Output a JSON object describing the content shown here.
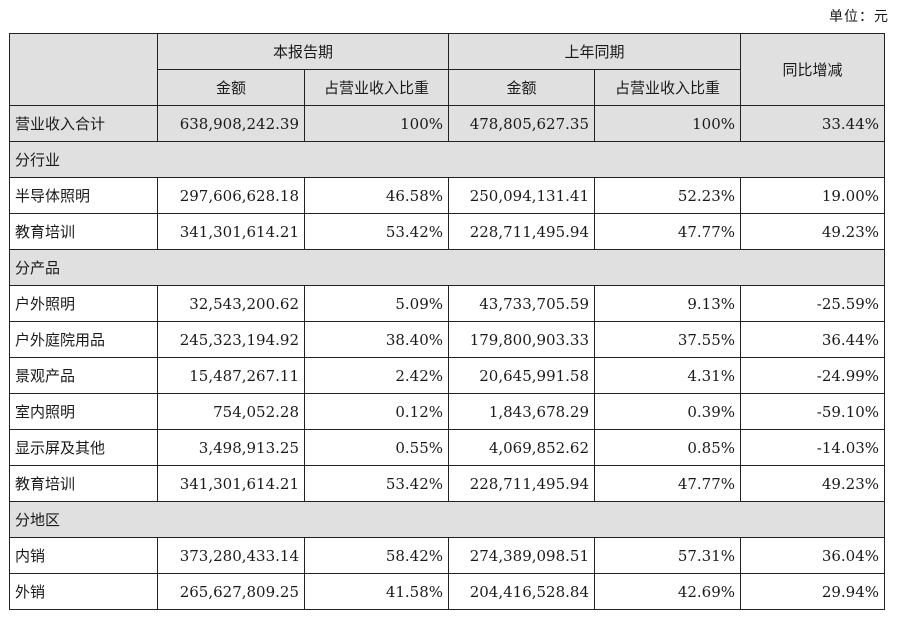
{
  "unit_label": "单位：元",
  "header": {
    "current_period": "本报告期",
    "prior_period": "上年同期",
    "yoy_change": "同比增减",
    "amount": "金额",
    "share": "占营业收入比重"
  },
  "total": {
    "label": "营业收入合计",
    "cur_amount": "638,908,242.39",
    "cur_share": "100%",
    "prev_amount": "478,805,627.35",
    "prev_share": "100%",
    "yoy": "33.44%"
  },
  "sections": {
    "industry": {
      "title": "分行业",
      "rows": [
        {
          "label": "半导体照明",
          "cur_amount": "297,606,628.18",
          "cur_share": "46.58%",
          "prev_amount": "250,094,131.41",
          "prev_share": "52.23%",
          "yoy": "19.00%"
        },
        {
          "label": "教育培训",
          "cur_amount": "341,301,614.21",
          "cur_share": "53.42%",
          "prev_amount": "228,711,495.94",
          "prev_share": "47.77%",
          "yoy": "49.23%"
        }
      ]
    },
    "product": {
      "title": "分产品",
      "rows": [
        {
          "label": "户外照明",
          "cur_amount": "32,543,200.62",
          "cur_share": "5.09%",
          "prev_amount": "43,733,705.59",
          "prev_share": "9.13%",
          "yoy": "-25.59%"
        },
        {
          "label": "户外庭院用品",
          "cur_amount": "245,323,194.92",
          "cur_share": "38.40%",
          "prev_amount": "179,800,903.33",
          "prev_share": "37.55%",
          "yoy": "36.44%"
        },
        {
          "label": "景观产品",
          "cur_amount": "15,487,267.11",
          "cur_share": "2.42%",
          "prev_amount": "20,645,991.58",
          "prev_share": "4.31%",
          "yoy": "-24.99%"
        },
        {
          "label": "室内照明",
          "cur_amount": "754,052.28",
          "cur_share": "0.12%",
          "prev_amount": "1,843,678.29",
          "prev_share": "0.39%",
          "yoy": "-59.10%"
        },
        {
          "label": "显示屏及其他",
          "cur_amount": "3,498,913.25",
          "cur_share": "0.55%",
          "prev_amount": "4,069,852.62",
          "prev_share": "0.85%",
          "yoy": "-14.03%"
        },
        {
          "label": "教育培训",
          "cur_amount": "341,301,614.21",
          "cur_share": "53.42%",
          "prev_amount": "228,711,495.94",
          "prev_share": "47.77%",
          "yoy": "49.23%"
        }
      ]
    },
    "region": {
      "title": "分地区",
      "rows": [
        {
          "label": "内销",
          "cur_amount": "373,280,433.14",
          "cur_share": "58.42%",
          "prev_amount": "274,389,098.51",
          "prev_share": "57.31%",
          "yoy": "36.04%"
        },
        {
          "label": "外销",
          "cur_amount": "265,627,809.25",
          "cur_share": "41.58%",
          "prev_amount": "204,416,528.84",
          "prev_share": "42.69%",
          "yoy": "29.94%"
        }
      ]
    }
  }
}
